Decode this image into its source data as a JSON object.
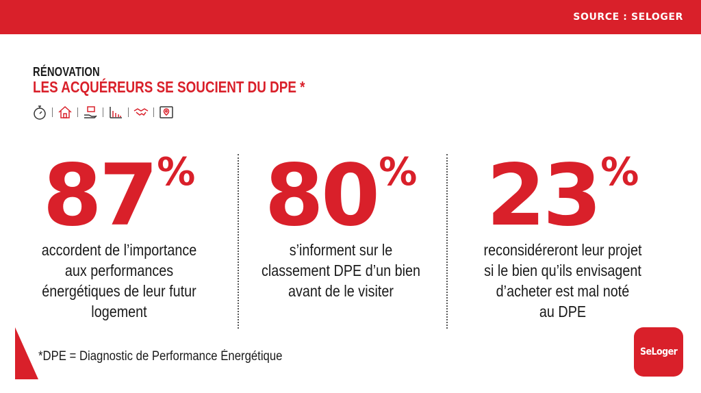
{
  "header": {
    "source": "SOURCE : SELOGER",
    "bar_color": "#d9202a"
  },
  "heading": {
    "kicker": "RÉNOVATION",
    "title": "LES ACQUÉREURS SE SOUCIENT DU DPE *"
  },
  "icons": [
    "stopwatch-icon",
    "house-icon",
    "hand-holding-money-icon",
    "bar-chart-icon",
    "handshake-icon",
    "map-pin-icon"
  ],
  "stats": [
    {
      "value": "87",
      "unit": "%",
      "lines": [
        "accordent de l’importance",
        "aux performances",
        "énergétiques de leur futur",
        "logement"
      ]
    },
    {
      "value": "80",
      "unit": "%",
      "lines": [
        "s’informent sur le",
        "classement DPE d’un bien",
        "avant de le visiter"
      ]
    },
    {
      "value": "23",
      "unit": "%",
      "lines": [
        "reconsidéreront leur projet",
        "si le bien qu’ils envisagent",
        "d’acheter est mal noté",
        "au DPE"
      ]
    }
  ],
  "footnote": "*DPE = Diagnostic de Performance Énergétique",
  "logo": {
    "text": "SeLoger",
    "color": "#d9202a"
  }
}
